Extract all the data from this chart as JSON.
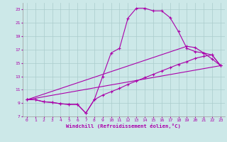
{
  "xlabel": "Windchill (Refroidissement éolien,°C)",
  "bg_color": "#cce8e8",
  "line_color": "#aa00aa",
  "grid_color": "#aacccc",
  "xlim": [
    -0.5,
    23.5
  ],
  "ylim": [
    7,
    24
  ],
  "xticks": [
    0,
    1,
    2,
    3,
    4,
    5,
    6,
    7,
    8,
    9,
    10,
    11,
    12,
    13,
    14,
    15,
    16,
    17,
    18,
    19,
    20,
    21,
    22,
    23
  ],
  "yticks": [
    7,
    9,
    11,
    13,
    15,
    17,
    19,
    21,
    23
  ],
  "line1_x": [
    0,
    1,
    2,
    3,
    4,
    5,
    6,
    7,
    8,
    9,
    10,
    11,
    12,
    13,
    14,
    15,
    16,
    17,
    18,
    19,
    20,
    21,
    22,
    23
  ],
  "line1_y": [
    9.5,
    9.5,
    9.2,
    9.1,
    8.9,
    8.8,
    8.8,
    7.5,
    9.5,
    13.0,
    16.5,
    17.2,
    21.7,
    23.2,
    23.2,
    22.8,
    22.8,
    21.8,
    19.7,
    17.2,
    16.7,
    16.5,
    16.2,
    14.6
  ],
  "line2_x": [
    0,
    1,
    2,
    3,
    4,
    5,
    6,
    7,
    8,
    9,
    10,
    11,
    12,
    13,
    14,
    15,
    16,
    17,
    18,
    19,
    20,
    21,
    22,
    23
  ],
  "line2_y": [
    9.5,
    9.5,
    9.2,
    9.1,
    8.9,
    8.8,
    8.8,
    7.5,
    9.5,
    10.2,
    10.7,
    11.2,
    11.8,
    12.3,
    12.8,
    13.3,
    13.8,
    14.3,
    14.8,
    15.2,
    15.7,
    16.0,
    16.2,
    14.6
  ],
  "line3_x": [
    0,
    23
  ],
  "line3_y": [
    9.5,
    14.6
  ],
  "line4_x": [
    0,
    19,
    20,
    21,
    22,
    23
  ],
  "line4_y": [
    9.5,
    17.5,
    17.3,
    16.5,
    15.6,
    14.6
  ]
}
